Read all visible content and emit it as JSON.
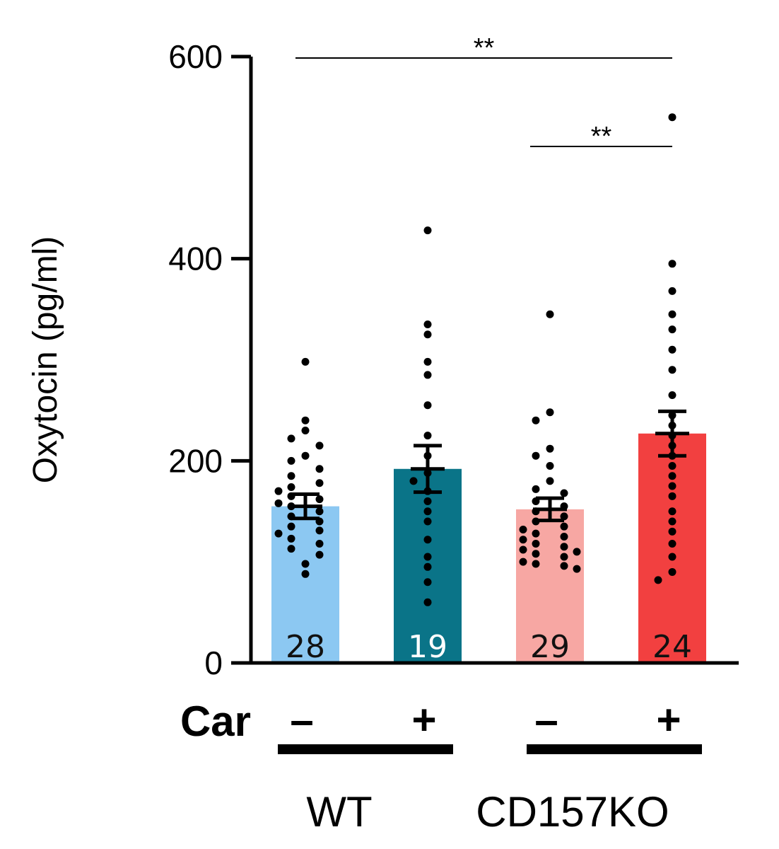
{
  "chart_data": {
    "type": "bar",
    "title": "",
    "ylabel": "Oxytocin (pg/ml)",
    "ylim": [
      0,
      600
    ],
    "yticks": [
      "0",
      "200",
      "400",
      "600"
    ],
    "treatment_label": "Car",
    "categories": [
      "WT Car −",
      "WT Car +",
      "CD157KO Car −",
      "CD157KO Car +"
    ],
    "treatments": [
      "–",
      "+",
      "–",
      "+"
    ],
    "groups": [
      {
        "name": "WT",
        "members": [
          0,
          1
        ]
      },
      {
        "name": "CD157KO",
        "members": [
          2,
          3
        ]
      }
    ],
    "values": [
      155,
      192,
      152,
      227
    ],
    "sem_upper": [
      167,
      215,
      163,
      249
    ],
    "sem_lower": [
      143,
      169,
      141,
      205
    ],
    "n_labels": [
      "28",
      "19",
      "29",
      "24"
    ],
    "colors": [
      "#8CC8F2",
      "#0A7488",
      "#F7A7A3",
      "#F24040"
    ],
    "n_label_colors": [
      "#111111",
      "#ffffff",
      "#111111",
      "#111111"
    ],
    "points": [
      [
        298,
        240,
        230,
        222,
        215,
        205,
        200,
        192,
        185,
        178,
        174,
        170,
        165,
        162,
        158,
        155,
        150,
        145,
        140,
        135,
        131,
        128,
        123,
        118,
        113,
        107,
        98,
        88
      ],
      [
        428,
        335,
        325,
        298,
        285,
        255,
        225,
        205,
        188,
        180,
        170,
        160,
        150,
        140,
        122,
        105,
        95,
        80,
        60
      ],
      [
        345,
        248,
        240,
        212,
        205,
        195,
        180,
        172,
        168,
        160,
        155,
        150,
        145,
        140,
        135,
        132,
        128,
        125,
        122,
        118,
        115,
        112,
        110,
        108,
        105,
        100,
        98,
        96,
        93
      ],
      [
        540,
        395,
        368,
        345,
        330,
        310,
        290,
        265,
        245,
        235,
        225,
        215,
        205,
        195,
        185,
        175,
        165,
        150,
        140,
        130,
        118,
        105,
        90,
        82
      ]
    ],
    "significance": [
      {
        "from": 0,
        "to": 3,
        "label": "**"
      },
      {
        "from": 2,
        "to": 3,
        "label": "**"
      }
    ]
  }
}
